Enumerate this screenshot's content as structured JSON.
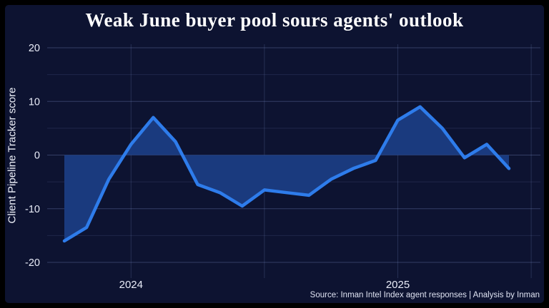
{
  "window": {
    "outer_background": "#000000"
  },
  "panel": {
    "background": "#0d1331"
  },
  "title": "Weak June buyer pool sours agents' outlook",
  "source_note": "Source: Inman Intel Index agent responses | Analysis by Inman",
  "chart_data": {
    "type": "line",
    "title": "Weak June buyer pool sours agents' outlook",
    "ylabel": "Client Pipeline Tracker score",
    "xlabel": "",
    "series_name": "Client Pipeline Tracker score",
    "x": [
      "Oct 2023",
      "Nov 2023",
      "Dec 2023",
      "Jan 2024",
      "Feb 2024",
      "Mar 2024",
      "Apr 2024",
      "May 2024",
      "Jun 2024",
      "Jul 2024",
      "Aug 2024",
      "Sep 2024",
      "Oct 2024",
      "Nov 2024",
      "Dec 2024",
      "Jan 2025",
      "Feb 2025",
      "Mar 2025",
      "Apr 2025",
      "May 2025",
      "Jun 2025"
    ],
    "values": [
      -16,
      -13.5,
      -4.5,
      2,
      7,
      2.5,
      -5.5,
      -7,
      -9.5,
      -6.5,
      -7,
      -7.5,
      -4.5,
      -2.5,
      -1,
      6.5,
      9,
      5,
      -0.5,
      2,
      -2.5
    ],
    "ylim": [
      -20,
      20
    ],
    "yticks": [
      20,
      10,
      0,
      -10,
      -20
    ],
    "yticks_minor": [
      15,
      5,
      -5,
      -15
    ],
    "xticks": [
      {
        "label": "2024",
        "month_index": 3
      },
      {
        "label": "2025",
        "month_index": 15
      }
    ],
    "x_gridlines_month_indices": [
      3,
      9,
      15,
      21
    ],
    "baseline": 0,
    "area_fill": "between line and zero baseline",
    "grid": "on",
    "legend": "none",
    "colors": {
      "line": "#2e7ceb",
      "area_fill": "#1a3a7e",
      "grid": "#8ca0de",
      "text": "#eef1fa",
      "panel_background": "#0d1331",
      "outer_background": "#000000"
    }
  }
}
